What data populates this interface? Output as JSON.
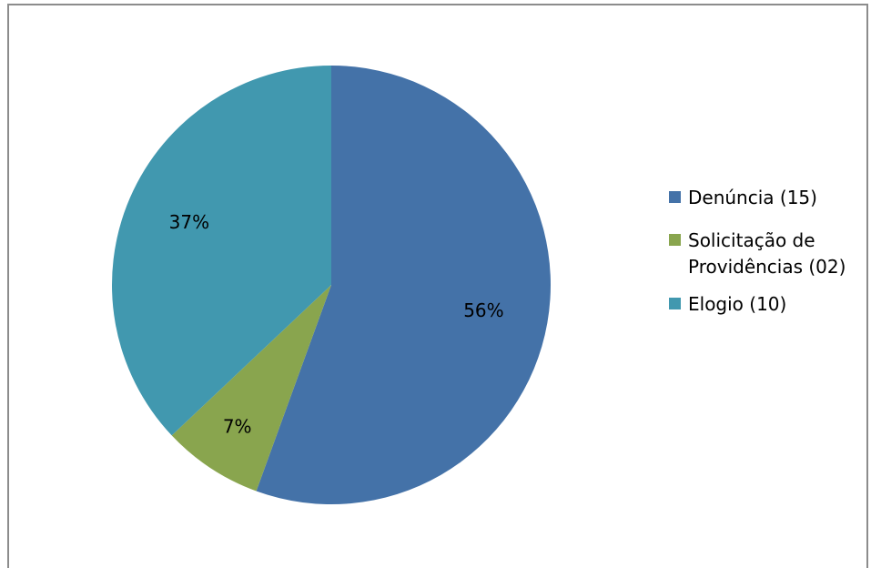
{
  "chart_data": {
    "type": "pie",
    "title": "",
    "slices": [
      {
        "label": "Denúncia (15)",
        "value": 15,
        "percent_label": "56%",
        "color": "#4472A8"
      },
      {
        "label": "Solicitação de Providências (02)",
        "value": 2,
        "percent_label": "7%",
        "color": "#89A54E"
      },
      {
        "label": "Elogio (10)",
        "value": 10,
        "percent_label": "37%",
        "color": "#4198AF"
      }
    ],
    "legend_position": "right",
    "start_angle": "12 o'clock",
    "direction": "clockwise"
  }
}
